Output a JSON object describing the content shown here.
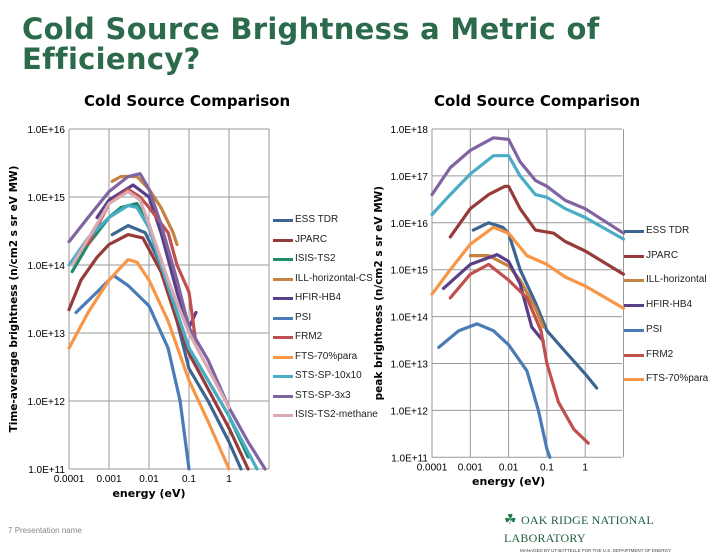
{
  "title": "Cold Source Brightness a Metric of Efficiency?",
  "footer": {
    "page": "7",
    "presentation_name": "Presentation name",
    "logo": "OAK RIDGE NATIONAL LABORATORY",
    "logo_sub": "MANAGED BY UT-BATTELLE FOR THE U.S. DEPARTMENT OF ENERGY"
  },
  "chart_data": [
    {
      "type": "line",
      "title": "Cold Source Comparison",
      "xlabel": "energy (eV)",
      "ylabel": "Time-average brightness (n/cm2 s sr eV MW)",
      "xscale": "log",
      "yscale": "log",
      "xlim": [
        0.0001,
        10
      ],
      "ylim": [
        100000000000.0,
        1e+16
      ],
      "xticks": [
        "0.0001",
        "0.001",
        "0.01",
        "0.1",
        "1"
      ],
      "yticks": [
        "1.0E+11",
        "1.0E+12",
        "1.0E+13",
        "1.0E+14",
        "1.0E+15",
        "1.0E+16"
      ],
      "grid": true,
      "legend": "right",
      "series": [
        {
          "name": "ESS TDR",
          "color": "#3d6591",
          "points": [
            [
              0.0012,
              280000000000000.0
            ],
            [
              0.003,
              380000000000000.0
            ],
            [
              0.008,
              300000000000000.0
            ],
            [
              0.02,
              100000000000000.0
            ],
            [
              0.05,
              15000000000000.0
            ],
            [
              0.1,
              3000000000000.0
            ],
            [
              0.3,
              1000000000000.0
            ],
            [
              1,
              250000000000.0
            ],
            [
              2,
              100000000000.0
            ]
          ]
        },
        {
          "name": "JPARC",
          "color": "#963a3a",
          "points": [
            [
              0.0001,
              22000000000000.0
            ],
            [
              0.0002,
              60000000000000.0
            ],
            [
              0.0005,
              130000000000000.0
            ],
            [
              0.001,
              200000000000000.0
            ],
            [
              0.003,
              280000000000000.0
            ],
            [
              0.007,
              250000000000000.0
            ],
            [
              0.02,
              80000000000000.0
            ],
            [
              0.05,
              15000000000000.0
            ],
            [
              0.1,
              5000000000000.0
            ],
            [
              0.3,
              1500000000000.0
            ],
            [
              1,
              400000000000.0
            ],
            [
              3,
              100000000000.0
            ]
          ]
        },
        {
          "name": "ISIS-TS2",
          "color": "#1f8c6c",
          "points": [
            [
              0.00012,
              80000000000000.0
            ],
            [
              0.0003,
              200000000000000.0
            ],
            [
              0.001,
              500000000000000.0
            ],
            [
              0.002,
              700000000000000.0
            ],
            [
              0.005,
              800000000000000.0
            ],
            [
              0.01,
              400000000000000.0
            ],
            [
              0.02,
              100000000000000.0
            ],
            [
              0.05,
              20000000000000.0
            ],
            [
              0.1,
              6000000000000.0
            ],
            [
              0.3,
              2000000000000.0
            ],
            [
              1,
              600000000000.0
            ],
            [
              3,
              150000000000.0
            ]
          ]
        },
        {
          "name": "ILL-horizontal-CS",
          "color": "#c4843f",
          "points": [
            [
              0.0012,
              1700000000000000.0
            ],
            [
              0.002,
              2000000000000000.0
            ],
            [
              0.005,
              2000000000000000.0
            ],
            [
              0.01,
              1300000000000000.0
            ],
            [
              0.02,
              700000000000000.0
            ],
            [
              0.04,
              300000000000000.0
            ],
            [
              0.05,
              200000000000000.0
            ]
          ]
        },
        {
          "name": "HFIR-HB4",
          "color": "#5a3f88",
          "points": [
            [
              0.0005,
              500000000000000.0
            ],
            [
              0.001,
              900000000000000.0
            ],
            [
              0.004,
              1500000000000000.0
            ],
            [
              0.01,
              1000000000000000.0
            ],
            [
              0.02,
              300000000000000.0
            ],
            [
              0.05,
              40000000000000.0
            ],
            [
              0.1,
              12000000000000.0
            ],
            [
              0.15,
              20000000000000.0
            ]
          ]
        },
        {
          "name": "PSI",
          "color": "#4a7bb7",
          "points": [
            [
              0.00015,
              20000000000000.0
            ],
            [
              0.0005,
              40000000000000.0
            ],
            [
              0.0013,
              70000000000000.0
            ],
            [
              0.003,
              50000000000000.0
            ],
            [
              0.01,
              25000000000000.0
            ],
            [
              0.03,
              6000000000000.0
            ],
            [
              0.06,
              1000000000000.0
            ],
            [
              0.1,
              100000000000.0
            ]
          ]
        },
        {
          "name": "FRM2",
          "color": "#c0504d",
          "points": [
            [
              0.0003,
              200000000000000.0
            ],
            [
              0.001,
              800000000000000.0
            ],
            [
              0.003,
              1300000000000000.0
            ],
            [
              0.006,
              1000000000000000.0
            ],
            [
              0.01,
              700000000000000.0
            ],
            [
              0.03,
              300000000000000.0
            ],
            [
              0.05,
              100000000000000.0
            ],
            [
              0.1,
              40000000000000.0
            ],
            [
              0.15,
              7000000000000.0
            ]
          ]
        },
        {
          "name": "FTS-70%para",
          "color": "#f79646",
          "points": [
            [
              0.0001,
              6000000000000.0
            ],
            [
              0.0003,
              20000000000000.0
            ],
            [
              0.001,
              60000000000000.0
            ],
            [
              0.003,
              120000000000000.0
            ],
            [
              0.005,
              110000000000000.0
            ],
            [
              0.01,
              60000000000000.0
            ],
            [
              0.03,
              15000000000000.0
            ],
            [
              0.1,
              2000000000000.0
            ],
            [
              0.3,
              500000000000.0
            ],
            [
              1,
              100000000000.0
            ]
          ]
        },
        {
          "name": "STS-SP-10x10",
          "color": "#4bacc6",
          "points": [
            [
              0.0001,
              100000000000000.0
            ],
            [
              0.0003,
              250000000000000.0
            ],
            [
              0.001,
              500000000000000.0
            ],
            [
              0.003,
              750000000000000.0
            ],
            [
              0.005,
              700000000000000.0
            ],
            [
              0.01,
              350000000000000.0
            ],
            [
              0.02,
              100000000000000.0
            ],
            [
              0.05,
              20000000000000.0
            ],
            [
              0.1,
              6000000000000.0
            ],
            [
              0.3,
              2000000000000.0
            ],
            [
              1,
              600000000000.0
            ],
            [
              5,
              100000000000.0
            ]
          ]
        },
        {
          "name": "STS-SP-3x3",
          "color": "#8064a2",
          "points": [
            [
              0.0001,
              220000000000000.0
            ],
            [
              0.0003,
              500000000000000.0
            ],
            [
              0.001,
              1200000000000000.0
            ],
            [
              0.003,
              2000000000000000.0
            ],
            [
              0.006,
              2200000000000000.0
            ],
            [
              0.01,
              1300000000000000.0
            ],
            [
              0.02,
              400000000000000.0
            ],
            [
              0.05,
              60000000000000.0
            ],
            [
              0.1,
              12000000000000.0
            ],
            [
              0.3,
              4000000000000.0
            ],
            [
              1,
              800000000000.0
            ],
            [
              3,
              250000000000.0
            ],
            [
              8,
              100000000000.0
            ]
          ]
        },
        {
          "name": "ISIS-TS2-methane",
          "color": "#dba9b1",
          "points": [
            [
              0.00012,
              100000000000000.0
            ],
            [
              0.0005,
              400000000000000.0
            ],
            [
              0.001,
              800000000000000.0
            ],
            [
              0.003,
              1200000000000000.0
            ],
            [
              0.006,
              900000000000000.0
            ],
            [
              0.01,
              400000000000000.0
            ],
            [
              0.03,
              60000000000000.0
            ],
            [
              0.1,
              10000000000000.0
            ],
            [
              0.3,
              3000000000000.0
            ],
            [
              1,
              800000000000.0
            ]
          ]
        }
      ]
    },
    {
      "type": "line",
      "title": "Cold Source Comparison",
      "xlabel": "energy (eV)",
      "ylabel": "peak brightness (n/cm2 s sr eV MW)",
      "xscale": "log",
      "yscale": "log",
      "xlim": [
        0.0001,
        10
      ],
      "ylim": [
        100000000000.0,
        1e+18
      ],
      "xticks": [
        "0.0001",
        "0.001",
        "0.01",
        "0.1",
        "1"
      ],
      "yticks": [
        "1.0E+11",
        "1.0E+12",
        "1.0E+13",
        "1.0E+14",
        "1.0E+15",
        "1.0E+16",
        "1.0E+17",
        "1.0E+18"
      ],
      "grid": true,
      "legend": "right",
      "series": [
        {
          "color": "#8064a2",
          "points": [
            [
              0.0001,
              4e+16
            ],
            [
              0.0003,
              1.5e+17
            ],
            [
              0.001,
              3.5e+17
            ],
            [
              0.004,
              6.5e+17
            ],
            [
              0.01,
              6e+17
            ],
            [
              0.02,
              2e+17
            ],
            [
              0.05,
              8e+16
            ],
            [
              0.1,
              6e+16
            ],
            [
              0.3,
              3e+16
            ],
            [
              1,
              2e+16
            ],
            [
              10,
              6000000000000000.0
            ]
          ]
        },
        {
          "color": "#4bacc6",
          "points": [
            [
              0.0001,
              1.5e+16
            ],
            [
              0.0003,
              4e+16
            ],
            [
              0.001,
              1.1e+17
            ],
            [
              0.004,
              2.7e+17
            ],
            [
              0.01,
              2.7e+17
            ],
            [
              0.02,
              1e+17
            ],
            [
              0.05,
              4e+16
            ],
            [
              0.1,
              3.5e+16
            ],
            [
              0.3,
              2e+16
            ],
            [
              1,
              1.3e+16
            ],
            [
              10,
              4500000000000000.0
            ]
          ]
        },
        {
          "name": "ESS TDR",
          "color": "#3d6591",
          "points": [
            [
              0.0012,
              7000000000000000.0
            ],
            [
              0.003,
              1e+16
            ],
            [
              0.007,
              8000000000000000.0
            ],
            [
              0.01,
              6000000000000000.0
            ],
            [
              0.02,
              1000000000000000.0
            ],
            [
              0.05,
              200000000000000.0
            ],
            [
              0.1,
              50000000000000.0
            ],
            [
              0.3,
              18000000000000.0
            ],
            [
              1,
              6000000000000.0
            ],
            [
              2,
              3000000000000.0
            ]
          ]
        },
        {
          "name": "JPARC",
          "color": "#963a3a",
          "points": [
            [
              0.0003,
              5000000000000000.0
            ],
            [
              0.001,
              2e+16
            ],
            [
              0.003,
              4e+16
            ],
            [
              0.008,
              6e+16
            ],
            [
              0.01,
              6e+16
            ],
            [
              0.02,
              2e+16
            ],
            [
              0.05,
              7000000000000000.0
            ],
            [
              0.15,
              6000000000000000.0
            ],
            [
              0.3,
              4000000000000000.0
            ],
            [
              1,
              2500000000000000.0
            ],
            [
              10,
              800000000000000.0
            ]
          ]
        },
        {
          "name": "ILL-horizontal",
          "color": "#c4843f",
          "points": [
            [
              0.001,
              2000000000000000.0
            ],
            [
              0.003,
              2000000000000000.0
            ],
            [
              0.01,
              1200000000000000.0
            ],
            [
              0.02,
              600000000000000.0
            ],
            [
              0.05,
              150000000000000.0
            ],
            [
              0.08,
              60000000000000.0
            ]
          ]
        },
        {
          "name": "HFIR-HB4",
          "color": "#5a3f88",
          "points": [
            [
              0.0002,
              400000000000000.0
            ],
            [
              0.001,
              1300000000000000.0
            ],
            [
              0.005,
              2100000000000000.0
            ],
            [
              0.01,
              1500000000000000.0
            ],
            [
              0.02,
              500000000000000.0
            ],
            [
              0.04,
              60000000000000.0
            ],
            [
              0.08,
              30000000000000.0
            ]
          ]
        },
        {
          "name": "PSI",
          "color": "#4a7bb7",
          "points": [
            [
              0.00015,
              22000000000000.0
            ],
            [
              0.0005,
              50000000000000.0
            ],
            [
              0.0015,
              70000000000000.0
            ],
            [
              0.004,
              50000000000000.0
            ],
            [
              0.01,
              25000000000000.0
            ],
            [
              0.03,
              7000000000000.0
            ],
            [
              0.06,
              1000000000000.0
            ],
            [
              0.1,
              150000000000.0
            ],
            [
              0.12,
              100000000000.0
            ]
          ]
        },
        {
          "name": "FRM2",
          "color": "#c0504d",
          "points": [
            [
              0.0003,
              250000000000000.0
            ],
            [
              0.001,
              800000000000000.0
            ],
            [
              0.003,
              1300000000000000.0
            ],
            [
              0.01,
              600000000000000.0
            ],
            [
              0.03,
              250000000000000.0
            ],
            [
              0.07,
              50000000000000.0
            ],
            [
              0.1,
              10000000000000.0
            ],
            [
              0.2,
              1500000000000.0
            ],
            [
              0.5,
              400000000000.0
            ],
            [
              1.2,
              200000000000.0
            ]
          ]
        },
        {
          "name": "FTS-70%para",
          "color": "#f79646",
          "points": [
            [
              0.0001,
              300000000000000.0
            ],
            [
              0.0003,
              1000000000000000.0
            ],
            [
              0.001,
              3500000000000000.0
            ],
            [
              0.004,
              8000000000000000.0
            ],
            [
              0.01,
              6000000000000000.0
            ],
            [
              0.03,
              2000000000000000.0
            ],
            [
              0.1,
              1300000000000000.0
            ],
            [
              0.3,
              700000000000000.0
            ],
            [
              1,
              450000000000000.0
            ],
            [
              10,
              150000000000000.0
            ]
          ]
        }
      ]
    }
  ]
}
